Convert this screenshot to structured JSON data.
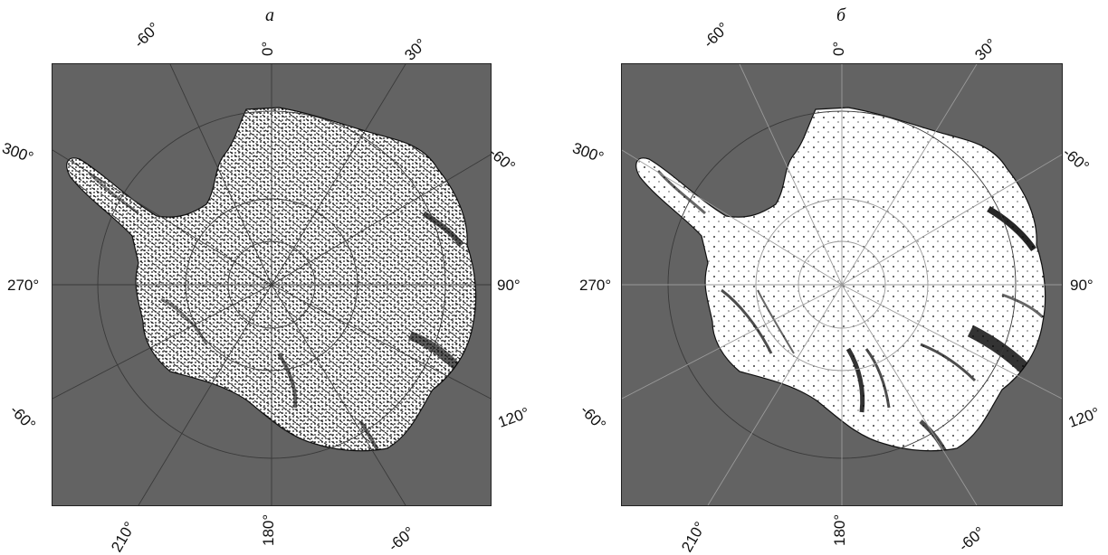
{
  "figure": {
    "background_color": "#ffffff",
    "ocean_color": "#636363",
    "land_color": "#ffffff",
    "vector_color": "#000000",
    "grid_color": "#3a3a3a"
  },
  "panels": [
    {
      "title": "a",
      "vector_style": "dense-arrows",
      "labels": {
        "top_left": "-60°",
        "top_center": "0°",
        "top_right": "30°",
        "left_upper": "300°",
        "left_middle": "270°",
        "left_lower": "-60°",
        "right_upper": "-60°",
        "right_middle": "90°",
        "right_lower": "120°",
        "bottom_left": "210°",
        "bottom_center": "180°",
        "bottom_right": "-60°"
      }
    },
    {
      "title": "б",
      "vector_style": "sparse-arrows",
      "labels": {
        "top_left": "-60°",
        "top_center": "0°",
        "top_right": "30°",
        "left_upper": "300°",
        "left_middle": "270°",
        "left_lower": "-60°",
        "right_upper": "-60°",
        "right_middle": "90°",
        "right_lower": "120°",
        "bottom_left": "210°",
        "bottom_center": "180°",
        "bottom_right": "-60°"
      }
    }
  ]
}
